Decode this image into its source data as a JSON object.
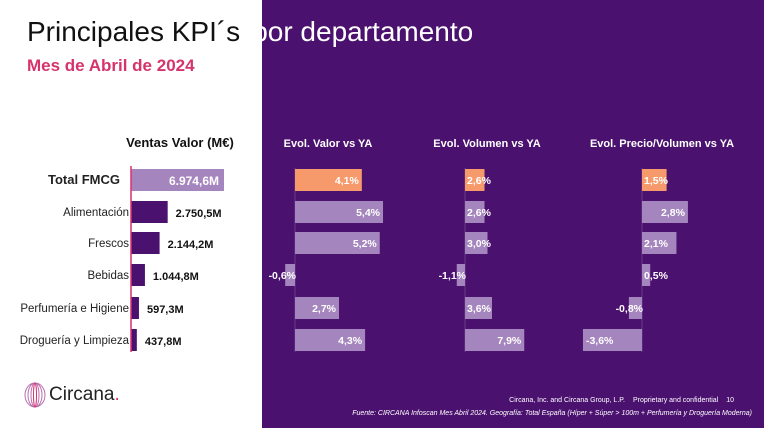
{
  "header": {
    "title_left": "Principales KPI´s",
    "title_right": "por departamento",
    "subtitle": "Mes de Abril de 2024"
  },
  "colors": {
    "purple_bg": "#4b116f",
    "accent_pink": "#d6336c",
    "total_orange": "#f79a6b",
    "bar_light": "#a585bd",
    "bar_dark": "#4b116f"
  },
  "chart_data": [
    {
      "type": "bar",
      "orientation": "horizontal",
      "title": "Ventas Valor (M€)",
      "categories": [
        "Total FMCG",
        "Alimentación",
        "Frescos",
        "Bebidas",
        "Perfumería e Higiene",
        "Droguería y Limpieza"
      ],
      "values": [
        6974.6,
        2750.5,
        2144.2,
        1044.8,
        597.3,
        437.8
      ],
      "labels": [
        "6.974,6M",
        "2.750,5M",
        "2.144,2M",
        "1.044,8M",
        "597,3M",
        "437,8M"
      ]
    },
    {
      "type": "bar",
      "orientation": "horizontal",
      "title": "Evol. Valor vs YA",
      "values": [
        4.1,
        5.4,
        5.2,
        -0.6,
        2.7,
        4.3
      ],
      "labels": [
        "4,1%",
        "5,4%",
        "5,2%",
        "-0,6%",
        "2,7%",
        "4,3%"
      ]
    },
    {
      "type": "bar",
      "orientation": "horizontal",
      "title": "Evol. Volumen vs YA",
      "values": [
        2.6,
        2.6,
        3.0,
        -1.1,
        3.6,
        7.9
      ],
      "labels": [
        "2,6%",
        "2,6%",
        "3,0%",
        "-1,1%",
        "3,6%",
        "7,9%"
      ]
    },
    {
      "type": "bar",
      "orientation": "horizontal",
      "title": "Evol. Precio/Volumen vs YA",
      "values": [
        1.5,
        2.8,
        2.1,
        0.5,
        -0.8,
        -3.6
      ],
      "labels": [
        "1,5%",
        "2,8%",
        "2,1%",
        "0,5%",
        "-0,8%",
        "-3,6%"
      ]
    }
  ],
  "footer": {
    "brand": "Circana",
    "copyright": "Circana, Inc. and Circana Group, L.P.",
    "confidential": "Proprietary and confidential",
    "page": "10",
    "source": "Fuente: CIRCANA Infoscan Mes Abril 2024. Geografía: Total España (Híper + Súper > 100m + Perfumería y Droguería Moderna)"
  }
}
